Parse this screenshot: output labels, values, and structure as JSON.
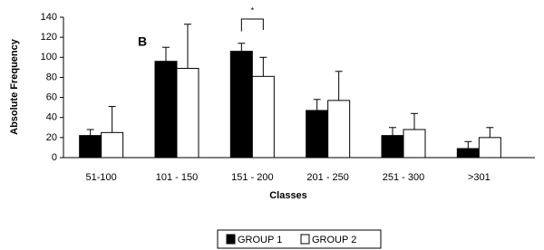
{
  "chart_data": {
    "type": "bar",
    "panel_label": "B",
    "significance": "*",
    "xlabel": "Classes",
    "ylabel": "Absolute Frequency",
    "categories": [
      "51-100",
      "101 - 150",
      "151 - 200",
      "201 - 250",
      "251 - 300",
      ">301"
    ],
    "series": [
      {
        "name": "GROUP 1",
        "color": "#000000",
        "values": [
          22,
          96,
          106,
          47,
          22,
          9
        ],
        "errors": [
          6,
          14,
          8,
          11,
          8,
          7
        ]
      },
      {
        "name": "GROUP 2",
        "color": "#ffffff",
        "values": [
          25,
          89,
          81,
          57,
          28,
          20
        ],
        "errors": [
          26,
          44,
          19,
          29,
          16,
          10
        ]
      }
    ],
    "ylim": [
      0,
      140
    ],
    "yticks": [
      0,
      20,
      40,
      60,
      80,
      100,
      120,
      140
    ],
    "grid": false,
    "legend": "bottom"
  }
}
